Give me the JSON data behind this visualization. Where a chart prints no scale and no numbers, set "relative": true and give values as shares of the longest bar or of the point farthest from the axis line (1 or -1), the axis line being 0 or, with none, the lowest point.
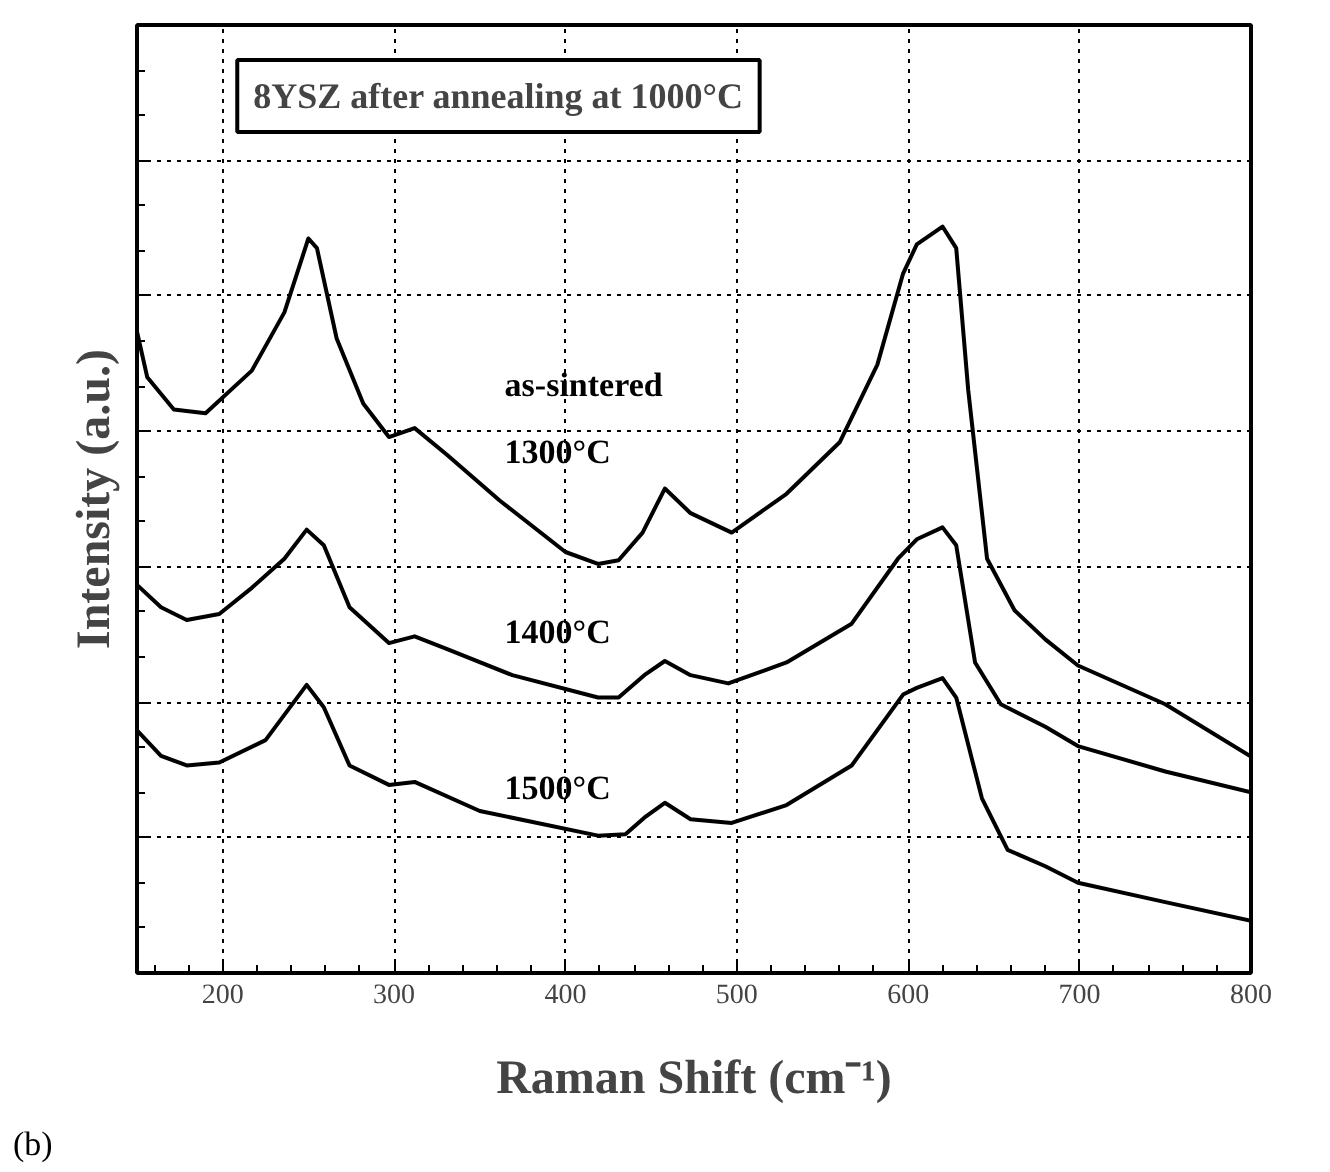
{
  "chart_data": {
    "type": "line",
    "title": "8YSZ after annealing at 1000°C",
    "xlabel": "Raman Shift (cm⁻¹)",
    "ylabel": "Intensity (a.u.)",
    "relative": true,
    "xlim": [
      150,
      800
    ],
    "xticks": [
      200,
      300,
      400,
      500,
      600,
      700,
      800
    ],
    "grid": true,
    "annotations": [
      "as-sintered",
      "1300°C",
      "1400°C",
      "1500°C",
      "(b)"
    ],
    "series": [
      {
        "color": "#000000",
        "x": [
          150,
          156,
          171.5,
          190,
          217,
          236,
          250,
          255,
          266.5,
          282,
          297,
          312,
          331,
          361.6,
          400,
          419,
          431,
          445,
          458,
          473,
          497,
          529,
          560,
          582,
          597,
          605,
          620,
          628,
          635,
          646,
          662,
          680,
          699,
          750,
          800
        ],
        "values": [
          0.859,
          0.798,
          0.755,
          0.75,
          0.807,
          0.885,
          0.984,
          0.971,
          0.85,
          0.763,
          0.718,
          0.73,
          0.694,
          0.633,
          0.564,
          0.548,
          0.553,
          0.59,
          0.649,
          0.616,
          0.59,
          0.642,
          0.711,
          0.815,
          0.937,
          0.976,
          1.0,
          0.971,
          0.781,
          0.555,
          0.486,
          0.447,
          0.412,
          0.36,
          0.29
        ]
      },
      {
        "color": "#000000",
        "x": [
          150,
          164,
          179,
          198,
          217,
          236,
          249,
          259,
          274,
          297,
          312,
          331,
          369,
          419,
          431,
          446,
          458,
          473,
          495,
          529,
          567,
          594,
          605,
          620,
          628,
          639,
          654,
          680,
          699,
          750,
          800
        ],
        "values": [
          0.52,
          0.49,
          0.473,
          0.481,
          0.516,
          0.555,
          0.594,
          0.573,
          0.49,
          0.442,
          0.451,
          0.434,
          0.399,
          0.369,
          0.369,
          0.399,
          0.418,
          0.399,
          0.388,
          0.416,
          0.468,
          0.555,
          0.581,
          0.597,
          0.573,
          0.416,
          0.36,
          0.33,
          0.304,
          0.27,
          0.242
        ]
      },
      {
        "color": "#000000",
        "x": [
          150,
          164,
          179,
          198,
          225,
          249,
          259,
          274,
          297,
          312,
          350,
          419,
          435,
          446,
          458,
          473,
          497,
          529,
          567,
          597,
          605,
          620,
          628,
          643,
          658,
          680,
          699,
          750,
          800
        ],
        "values": [
          0.325,
          0.291,
          0.278,
          0.282,
          0.312,
          0.386,
          0.356,
          0.278,
          0.252,
          0.256,
          0.217,
          0.184,
          0.186,
          0.208,
          0.228,
          0.206,
          0.201,
          0.225,
          0.278,
          0.373,
          0.382,
          0.395,
          0.369,
          0.234,
          0.165,
          0.143,
          0.121,
          0.095,
          0.07
        ]
      }
    ]
  }
}
